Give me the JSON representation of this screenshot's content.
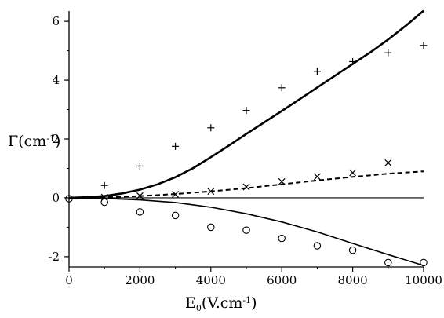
{
  "chart_data": {
    "type": "scatter",
    "xlabel": {
      "main": "E",
      "sub": "0",
      "rest": "(V.cm",
      "sup": "-1",
      "close": ")"
    },
    "ylabel": {
      "main": "Γ(cm",
      "sup": "-1",
      "close": ")"
    },
    "xlim": [
      0,
      10000
    ],
    "ylim": [
      -2.35,
      6.35
    ],
    "x_ticks": [
      0,
      2000,
      4000,
      6000,
      8000,
      10000
    ],
    "x_tick_labels": [
      "0",
      "2000",
      "4000",
      "6000",
      "8000",
      "10000"
    ],
    "y_ticks": [
      -2,
      0,
      2,
      4,
      6
    ],
    "y_tick_labels": [
      "-2",
      "0",
      "2",
      "4",
      "6"
    ],
    "grid": false,
    "legend": "none",
    "zero_line": true,
    "series": [
      {
        "marker": "plus",
        "points": [
          [
            1000,
            0.42
          ],
          [
            2000,
            1.08
          ],
          [
            3000,
            1.75
          ],
          [
            4000,
            2.38
          ],
          [
            5000,
            2.97
          ],
          [
            6000,
            3.74
          ],
          [
            7000,
            4.3
          ],
          [
            8000,
            4.63
          ],
          [
            9000,
            4.93
          ],
          [
            10000,
            5.18
          ]
        ]
      },
      {
        "marker": "cross",
        "points": [
          [
            1000,
            0.02
          ],
          [
            2000,
            0.07
          ],
          [
            3000,
            0.12
          ],
          [
            4000,
            0.22
          ],
          [
            5000,
            0.37
          ],
          [
            6000,
            0.55
          ],
          [
            7000,
            0.72
          ],
          [
            8000,
            0.85
          ],
          [
            9000,
            1.19
          ]
        ]
      },
      {
        "marker": "circle",
        "points": [
          [
            0,
            -0.03
          ],
          [
            1000,
            -0.15
          ],
          [
            2000,
            -0.48
          ],
          [
            3000,
            -0.6
          ],
          [
            4000,
            -1.0
          ],
          [
            5000,
            -1.1
          ],
          [
            6000,
            -1.38
          ],
          [
            7000,
            -1.63
          ],
          [
            8000,
            -1.78
          ],
          [
            9000,
            -2.2
          ],
          [
            10000,
            -2.2
          ]
        ]
      },
      {
        "line": "thick-solid",
        "points": [
          [
            0,
            0
          ],
          [
            500,
            0.02
          ],
          [
            1000,
            0.06
          ],
          [
            1500,
            0.15
          ],
          [
            2000,
            0.28
          ],
          [
            2500,
            0.46
          ],
          [
            3000,
            0.7
          ],
          [
            3500,
            1.01
          ],
          [
            4000,
            1.38
          ],
          [
            4500,
            1.77
          ],
          [
            5000,
            2.17
          ],
          [
            5500,
            2.56
          ],
          [
            6000,
            2.95
          ],
          [
            6500,
            3.35
          ],
          [
            7000,
            3.75
          ],
          [
            7500,
            4.15
          ],
          [
            8000,
            4.55
          ],
          [
            8500,
            4.95
          ],
          [
            9000,
            5.38
          ],
          [
            9500,
            5.85
          ],
          [
            10000,
            6.36
          ]
        ]
      },
      {
        "line": "dashed",
        "points": [
          [
            0,
            0
          ],
          [
            1000,
            0.02
          ],
          [
            2000,
            0.06
          ],
          [
            3000,
            0.13
          ],
          [
            4000,
            0.22
          ],
          [
            5000,
            0.33
          ],
          [
            6000,
            0.46
          ],
          [
            7000,
            0.59
          ],
          [
            8000,
            0.71
          ],
          [
            9000,
            0.82
          ],
          [
            10000,
            0.9
          ]
        ]
      },
      {
        "line": "thin-solid",
        "points": [
          [
            0,
            0
          ],
          [
            1000,
            -0.02
          ],
          [
            2000,
            -0.07
          ],
          [
            3000,
            -0.16
          ],
          [
            4000,
            -0.32
          ],
          [
            5000,
            -0.54
          ],
          [
            6000,
            -0.82
          ],
          [
            7000,
            -1.16
          ],
          [
            8000,
            -1.55
          ],
          [
            9000,
            -1.93
          ],
          [
            10000,
            -2.3
          ]
        ]
      }
    ]
  }
}
